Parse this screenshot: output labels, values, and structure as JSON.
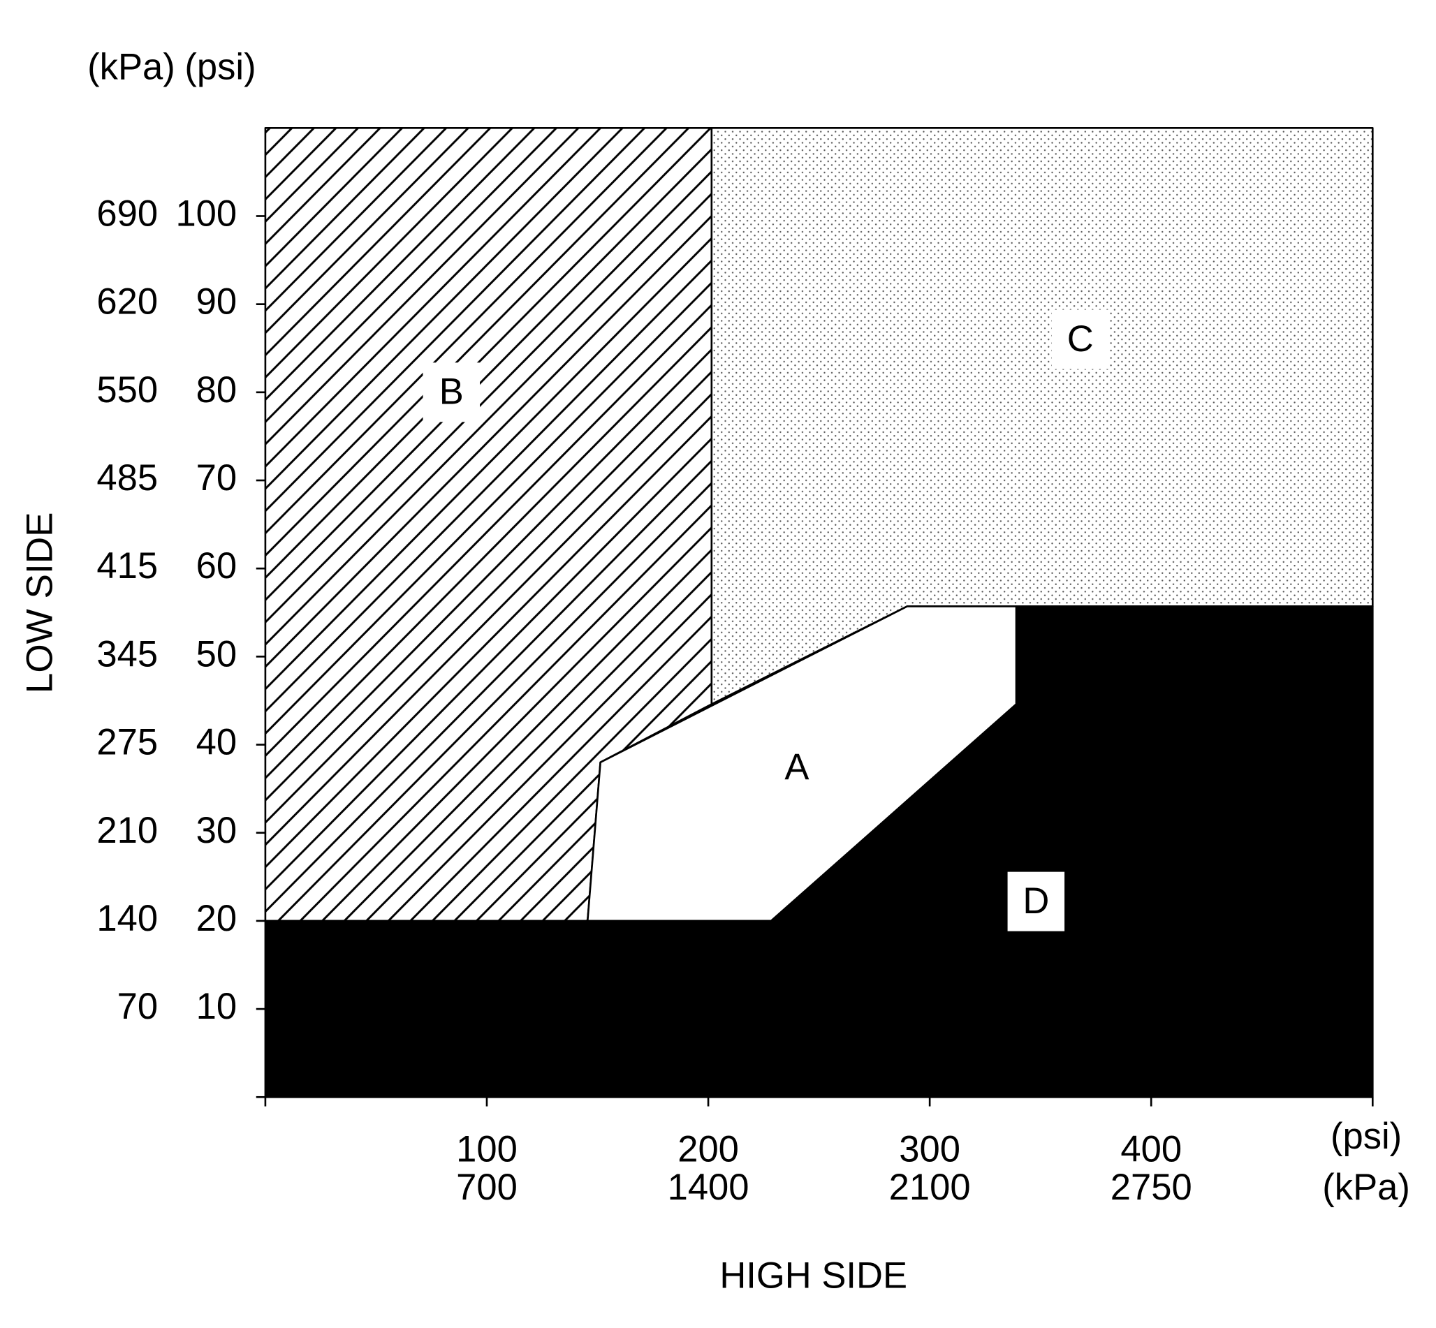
{
  "chart_data": {
    "type": "region",
    "unit_labels": {
      "y_left": "(kPa)",
      "y_right": "(psi)",
      "x_top": "(psi)",
      "x_bottom": "(kPa)"
    },
    "ylabel": "LOW SIDE",
    "xlabel": "HIGH SIDE",
    "xlim": [
      0,
      500
    ],
    "ylim": [
      0,
      110
    ],
    "xticks": [
      100,
      200,
      300,
      400
    ],
    "x2ticks": [
      {
        "value": 100,
        "label": "700"
      },
      {
        "value": 200,
        "label": "1400"
      },
      {
        "value": 300,
        "label": "2100"
      },
      {
        "value": 400,
        "label": "2750"
      }
    ],
    "yticks": [
      10,
      20,
      30,
      40,
      50,
      60,
      70,
      80,
      90,
      100
    ],
    "y2ticks": [
      {
        "value": 10,
        "label": "70"
      },
      {
        "value": 20,
        "label": "140"
      },
      {
        "value": 30,
        "label": "210"
      },
      {
        "value": 40,
        "label": "275"
      },
      {
        "value": 50,
        "label": "345"
      },
      {
        "value": 60,
        "label": "415"
      },
      {
        "value": 70,
        "label": "485"
      },
      {
        "value": 80,
        "label": "550"
      },
      {
        "value": 90,
        "label": "620"
      },
      {
        "value": 100,
        "label": "690"
      }
    ],
    "regions": [
      {
        "name": "B",
        "fill": "hatch",
        "x": [
          0,
          0,
          201.5,
          201.5,
          151.3,
          145.5
        ],
        "y": [
          20,
          110,
          110,
          44.6,
          38,
          20
        ]
      },
      {
        "name": "C",
        "fill": "dots",
        "x": [
          201.5,
          500,
          500,
          289.8,
          201.5
        ],
        "y": [
          110,
          110,
          55.7,
          55.7,
          44.6
        ]
      },
      {
        "name": "A",
        "fill": "white",
        "x": [
          145.5,
          151.3,
          289.8,
          339.1,
          339.1,
          228.4
        ],
        "y": [
          20,
          38,
          55.7,
          55.7,
          44.6,
          20
        ]
      },
      {
        "name": "D",
        "fill": "black",
        "x": [
          0,
          0,
          228.4,
          339.1,
          339.1,
          500,
          500
        ],
        "y": [
          0,
          20,
          20,
          44.6,
          55.7,
          55.7,
          0
        ]
      }
    ]
  }
}
